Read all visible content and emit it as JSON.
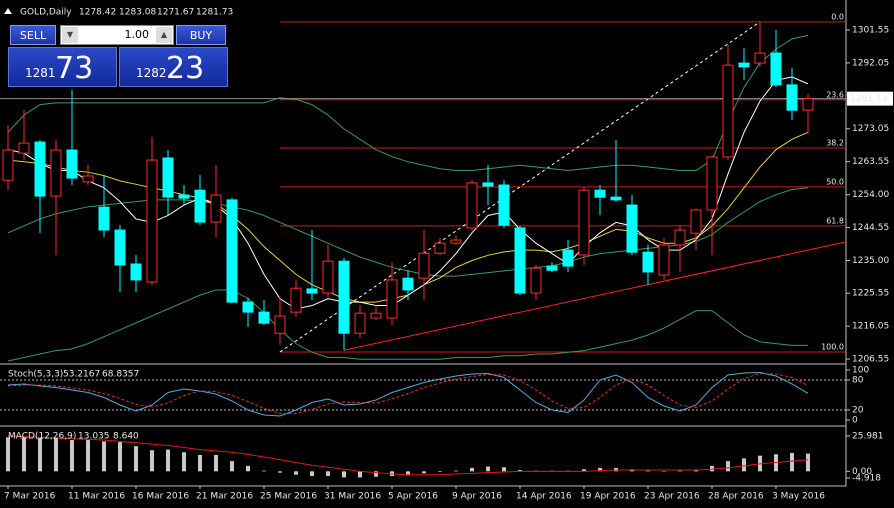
{
  "chart_data": [
    {
      "type": "candlestick",
      "title": "GOLD,Daily",
      "categories": [
        "7 Mar 2016",
        null,
        null,
        null,
        "11 Mar 2016",
        null,
        null,
        null,
        "16 Mar 2016",
        null,
        null,
        null,
        "21 Mar 2016",
        null,
        null,
        null,
        "25 Mar 2016",
        null,
        null,
        null,
        "31 Mar 2016",
        null,
        null,
        null,
        "5 Apr 2016",
        null,
        null,
        null,
        "9 Apr 2016",
        null,
        null,
        null,
        "14 Apr 2016",
        null,
        null,
        null,
        "19 Apr 2016",
        null,
        null,
        null,
        "23 Apr 2016",
        null,
        null,
        null,
        "28 Apr 2016",
        null,
        null,
        null,
        "3 May 2016",
        null,
        null
      ],
      "ohlc": [
        [
          1258.2,
          1274.1,
          1255.3,
          1266.9
        ],
        [
          1266.0,
          1278.4,
          1264.0,
          1268.9
        ],
        [
          1269.2,
          1269.8,
          1242.9,
          1253.6
        ],
        [
          1253.6,
          1269.8,
          1236.6,
          1266.9
        ],
        [
          1266.9,
          1284.2,
          1256.8,
          1258.8
        ],
        [
          1257.7,
          1262.6,
          1256.8,
          1259.4
        ],
        [
          1250.4,
          1259.7,
          1241.8,
          1243.8
        ],
        [
          1243.8,
          1245.2,
          1225.9,
          1233.7
        ],
        [
          1234.0,
          1236.6,
          1225.9,
          1229.4
        ],
        [
          1228.8,
          1270.6,
          1227.9,
          1264.0
        ],
        [
          1264.6,
          1266.9,
          1248.1,
          1253.3
        ],
        [
          1253.9,
          1256.8,
          1251.0,
          1253.0
        ],
        [
          1255.3,
          1259.7,
          1245.2,
          1246.1
        ],
        [
          1246.1,
          1262.6,
          1241.8,
          1253.9
        ],
        [
          1252.5,
          1253.0,
          1222.7,
          1223.0
        ],
        [
          1223.0,
          1224.2,
          1215.8,
          1220.1
        ],
        [
          1220.1,
          1223.6,
          1216.4,
          1216.9
        ],
        [
          1214.0,
          1224.4,
          1210.6,
          1219.0
        ],
        [
          1220.1,
          1229.4,
          1218.7,
          1227.0
        ],
        [
          1226.8,
          1243.8,
          1223.6,
          1225.6
        ],
        [
          1225.6,
          1239.5,
          1224.4,
          1234.8
        ],
        [
          1234.8,
          1235.7,
          1209.1,
          1214.0
        ],
        [
          1214.0,
          1222.1,
          1212.6,
          1219.8
        ],
        [
          1218.4,
          1222.1,
          1217.8,
          1219.8
        ],
        [
          1218.4,
          1234.5,
          1216.4,
          1229.4
        ],
        [
          1229.9,
          1232.2,
          1223.6,
          1226.5
        ],
        [
          1229.9,
          1243.8,
          1223.6,
          1237.1
        ],
        [
          1237.1,
          1241.5,
          1236.6,
          1240.0
        ],
        [
          1240.0,
          1242.3,
          1239.5,
          1240.9
        ],
        [
          1244.4,
          1258.2,
          1243.8,
          1257.4
        ],
        [
          1257.4,
          1262.6,
          1251.0,
          1256.5
        ],
        [
          1256.8,
          1258.2,
          1244.4,
          1245.2
        ],
        [
          1244.4,
          1245.0,
          1225.0,
          1225.6
        ],
        [
          1225.6,
          1233.7,
          1223.6,
          1232.8
        ],
        [
          1233.4,
          1234.5,
          1231.7,
          1232.2
        ],
        [
          1238.0,
          1240.9,
          1231.7,
          1233.4
        ],
        [
          1236.6,
          1256.2,
          1233.7,
          1255.3
        ],
        [
          1255.3,
          1256.8,
          1248.1,
          1253.3
        ],
        [
          1253.3,
          1269.8,
          1252.0,
          1252.5
        ],
        [
          1251.0,
          1253.9,
          1236.6,
          1237.4
        ],
        [
          1237.4,
          1239.5,
          1227.9,
          1231.7
        ],
        [
          1230.8,
          1241.5,
          1229.4,
          1239.5
        ],
        [
          1239.5,
          1245.2,
          1231.7,
          1243.8
        ],
        [
          1242.9,
          1250.1,
          1238.0,
          1249.6
        ],
        [
          1249.6,
          1265.4,
          1236.6,
          1264.9
        ],
        [
          1264.9,
          1297.2,
          1264.0,
          1291.4
        ],
        [
          1292.0,
          1296.4,
          1287.1,
          1290.9
        ],
        [
          1292.0,
          1303.9,
          1290.9,
          1294.9
        ],
        [
          1294.9,
          1301.6,
          1285.1,
          1285.7
        ],
        [
          1285.7,
          1290.6,
          1275.6,
          1278.4
        ],
        [
          1278.42,
          1283.08,
          1271.67,
          1281.73
        ]
      ],
      "up_color": "#ff2a2a",
      "down_color": "#00ffff",
      "lines": [
        {
          "color": "#3c9a5c",
          "values": [
            1272,
            1277,
            1280,
            1280.5,
            1280.5,
            1280.5,
            1280.5,
            1280.5,
            1280.5,
            1280.5,
            1280.5,
            1280.5,
            1280.5,
            1280.5,
            1280.5,
            1280.5,
            1280.5,
            1282,
            1281.5,
            1280,
            1277,
            1273,
            1270,
            1267,
            1265,
            1263.5,
            1262.5,
            1261.5,
            1261,
            1261,
            1261.5,
            1262,
            1262.5,
            1262,
            1261.5,
            1261,
            1261.5,
            1262,
            1262.5,
            1262.5,
            1262,
            1261.5,
            1261,
            1261,
            1264,
            1275,
            1285,
            1292,
            1296,
            1299,
            1300
          ]
        },
        {
          "color": "#3c9a5c",
          "values": [
            1243,
            1245,
            1247,
            1248.5,
            1249.5,
            1250.5,
            1251,
            1251.5,
            1252,
            1252.5,
            1252.5,
            1252.5,
            1252,
            1251.5,
            1250.5,
            1249.5,
            1248,
            1246,
            1244,
            1242,
            1240,
            1238,
            1236,
            1234.5,
            1233,
            1232,
            1231,
            1230.5,
            1230.5,
            1231,
            1231.5,
            1232,
            1232.5,
            1233,
            1233.5,
            1234.5,
            1236,
            1237,
            1237.5,
            1238,
            1238.5,
            1239,
            1239.5,
            1240.5,
            1242.5,
            1246,
            1249,
            1252,
            1254,
            1255.5,
            1256
          ]
        },
        {
          "color": "#3c9a5c",
          "values": [
            1206,
            1207,
            1208,
            1209,
            1209.5,
            1211,
            1213,
            1215,
            1217,
            1219,
            1221,
            1223,
            1225,
            1226.5,
            1226.5,
            1224,
            1220,
            1215,
            1211,
            1208.5,
            1207,
            1207,
            1206.5,
            1206.5,
            1206.5,
            1206.5,
            1206.5,
            1206.5,
            1207,
            1207,
            1207,
            1207.5,
            1207.5,
            1208,
            1208,
            1208.5,
            1209,
            1210,
            1211,
            1212,
            1213.5,
            1215.5,
            1218,
            1220.5,
            1220.5,
            1217,
            1213.5,
            1211.5,
            1211,
            1210.5,
            1210.5
          ]
        },
        {
          "color": "#e8cf3a",
          "values": [
            1264,
            1263.5,
            1263,
            1262,
            1261,
            1260.5,
            1259.5,
            1258,
            1257,
            1256,
            1255,
            1254,
            1253,
            1251.5,
            1248,
            1244,
            1239,
            1235,
            1231,
            1228,
            1226,
            1224,
            1223,
            1223,
            1224,
            1225,
            1228,
            1230,
            1233,
            1235,
            1236.5,
            1237.5,
            1238,
            1238,
            1237.5,
            1238.5,
            1240,
            1242,
            1244,
            1243.5,
            1241.5,
            1240,
            1240,
            1241.5,
            1245,
            1250,
            1256,
            1262,
            1267,
            1270,
            1272
          ]
        },
        {
          "color": "#ffffff",
          "values": [
            1267,
            1266,
            1263,
            1261,
            1261,
            1258,
            1256,
            1252,
            1247,
            1246,
            1248,
            1251,
            1253,
            1251,
            1247,
            1240,
            1231,
            1224,
            1221,
            1222,
            1224,
            1223,
            1223,
            1222,
            1222,
            1225,
            1228,
            1232,
            1237,
            1243,
            1248,
            1249,
            1244,
            1240,
            1237,
            1234,
            1239,
            1243,
            1246,
            1245,
            1241,
            1238,
            1238,
            1241,
            1247,
            1260,
            1272,
            1281,
            1287,
            1288,
            1286
          ]
        }
      ],
      "ylim": [
        1205.7,
        1307.9
      ],
      "yticks": [
        1301.55,
        1292.05,
        1273.05,
        1263.55,
        {
          "value": 1254.0,
          "label": "1254.00"
        },
        1244.55,
        {
          "value": 1235.0,
          "label": "1235.00"
        },
        1225.55,
        1216.05,
        1206.55
      ],
      "fibonacci": {
        "high": 1303.9,
        "low": 1208.6,
        "anchor_x": [
          17,
          47
        ],
        "color": "#d01818",
        "levels": [
          {
            "value": 0,
            "label": "0.0"
          },
          23.6,
          38.2,
          {
            "value": 50,
            "label": "50.0"
          },
          61.8,
          {
            "value": 100,
            "label": "100.0"
          }
        ]
      },
      "trendline": {
        "x": [
          21,
          52.3
        ],
        "y": [
          1209.1,
          1240.3
        ],
        "color": "#ff2020"
      }
    },
    {
      "type": "stochastic",
      "title": "Stoch(5,3,3)",
      "series": [
        {
          "color": "#5aa9d8",
          "style": "solid",
          "values": [
            70,
            72,
            68,
            65,
            60,
            55,
            45,
            30,
            18,
            30,
            55,
            62,
            58,
            52,
            38,
            20,
            10,
            8,
            20,
            35,
            42,
            30,
            32,
            40,
            55,
            65,
            75,
            82,
            88,
            92,
            93,
            85,
            60,
            35,
            20,
            15,
            40,
            80,
            90,
            75,
            45,
            28,
            18,
            30,
            65,
            90,
            94,
            95,
            88,
            72,
            53.2167
          ]
        },
        {
          "color": "#e03030",
          "style": "dashed",
          "values": [
            68,
            70,
            70,
            68,
            64,
            60,
            53,
            43,
            31,
            26,
            34,
            49,
            58,
            57,
            49,
            37,
            23,
            13,
            13,
            21,
            32,
            36,
            35,
            34,
            42,
            53,
            65,
            74,
            82,
            87,
            91,
            90,
            79,
            60,
            38,
            23,
            25,
            45,
            70,
            82,
            70,
            49,
            30,
            25,
            38,
            62,
            83,
            93,
            92,
            85,
            68.8357
          ]
        }
      ],
      "ylim": [
        0,
        100
      ],
      "yticks": [
        0,
        20,
        80,
        100
      ],
      "levels": [
        20,
        80
      ]
    },
    {
      "type": "macd",
      "title": "MACD(12,26,9)",
      "series": [
        {
          "color": "#c8c8c8",
          "values": [
            25,
            25,
            24.5,
            24.5,
            23,
            23,
            22,
            21.5,
            18.5,
            15.5,
            16,
            14,
            12,
            12,
            7.5,
            4,
            0.5,
            -1,
            -2.5,
            -3.5,
            -3.5,
            -4.5,
            -4.5,
            -4,
            -3.5,
            -3,
            -1.5,
            -0.5,
            0.5,
            2.5,
            3.5,
            3,
            1,
            0.5,
            0.5,
            0.5,
            1.5,
            2.5,
            2.5,
            1.5,
            0.5,
            0,
            0.5,
            1,
            4,
            7.5,
            9.5,
            11.5,
            12.5,
            13.5,
            13.035
          ]
        },
        {
          "color": "#e01818",
          "values": [
            26,
            25.5,
            25,
            24.5,
            24,
            23.5,
            23,
            22,
            21,
            20,
            19,
            17.5,
            16,
            15,
            14,
            12.5,
            10.5,
            8.5,
            6.5,
            4.5,
            3,
            1.5,
            0,
            -1,
            -2,
            -2.5,
            -2.5,
            -2.5,
            -2,
            -1.5,
            -1,
            -0.5,
            0,
            0,
            0,
            0,
            0,
            0.5,
            1,
            1,
            1,
            1,
            1,
            1,
            1.5,
            2.5,
            4,
            5.5,
            6.5,
            7.5,
            8.64
          ],
          "value_labels": [
            null,
            null,
            null,
            null,
            null,
            null,
            null,
            null,
            null,
            null,
            null,
            null,
            null,
            null,
            null,
            null,
            null,
            null,
            null,
            null,
            null,
            null,
            null,
            null,
            null,
            null,
            null,
            null,
            null,
            null,
            null,
            null,
            null,
            null,
            null,
            null,
            null,
            null,
            null,
            null,
            null,
            null,
            null,
            null,
            null,
            null,
            null,
            null,
            null,
            null,
            "8.640"
          ]
        }
      ],
      "ylim": [
        -4.918,
        25.981
      ],
      "yticks": [
        25.981,
        {
          "value": 0,
          "label": "0.00"
        },
        -4.918
      ]
    }
  ],
  "trade_panel": {
    "sell": "SELL",
    "buy": "BUY",
    "volume": "1.00",
    "bid_big": "1281",
    "bid_small": "73",
    "ask_big": "1282",
    "ask_small": "23"
  }
}
